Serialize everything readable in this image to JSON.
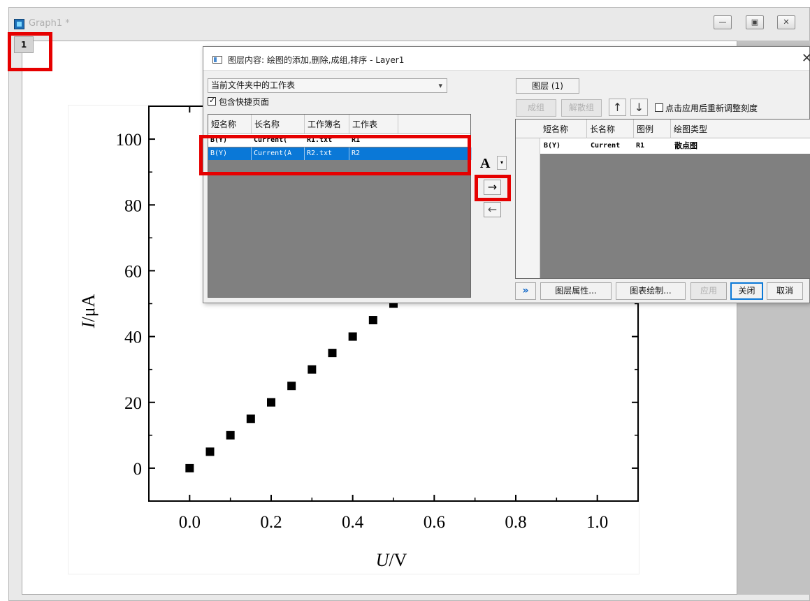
{
  "graph_window": {
    "title": "Graph1 *",
    "layer_tab": "1",
    "buttons": {
      "minimize": "—",
      "restore": "▣",
      "close": "✕"
    }
  },
  "chart_data": {
    "type": "scatter",
    "xlabel": "U/V",
    "xlabel_italic": "U",
    "xlabel_unit": "/V",
    "ylabel": "I/μA",
    "ylabel_italic": "I",
    "ylabel_unit": "/μA",
    "xlim": [
      -0.1,
      1.1
    ],
    "ylim": [
      -10,
      110
    ],
    "xticks": [
      0.0,
      0.2,
      0.4,
      0.6,
      0.8,
      1.0
    ],
    "xtick_labels": [
      "0.0",
      "0.2",
      "0.4",
      "0.6",
      "0.8",
      "1.0"
    ],
    "yticks": [
      0,
      20,
      40,
      60,
      80,
      100
    ],
    "ytick_labels": [
      "0",
      "20",
      "40",
      "60",
      "80",
      "100"
    ],
    "marker": "square",
    "marker_color": "#000000",
    "x": [
      0.0,
      0.05,
      0.1,
      0.15,
      0.2,
      0.25,
      0.3,
      0.35,
      0.4,
      0.45,
      0.5
    ],
    "y": [
      0,
      5,
      10,
      15,
      20,
      25,
      30,
      35,
      40,
      45,
      50
    ]
  },
  "dialog": {
    "title": "图层内容: 绘图的添加,删除,成组,排序 - Layer1",
    "close": "✕",
    "source_select": "当前文件夹中的工作表",
    "include_shortcuts": {
      "label": "包含快捷页面",
      "checked": true
    },
    "left_columns": [
      "短名称",
      "长名称",
      "工作簿名",
      "工作表"
    ],
    "left_rows": [
      {
        "short": "B(Y)",
        "long": "Current(",
        "book": "R1.txt",
        "sheet": "R1",
        "selected": false
      },
      {
        "short": "B(Y)",
        "long": "Current(A",
        "book": "R2.txt",
        "sheet": "R2",
        "selected": true
      }
    ],
    "font_button": "A",
    "dropdown_arrow": "▾",
    "add_button": "→",
    "remove_button": "←",
    "layer_button": "图层 (1)",
    "group_button": "成组",
    "ungroup_button": "解散组",
    "move_up": "↑",
    "move_down": "↓",
    "rescale_checkbox": {
      "label": "点击应用后重新调整刻度",
      "checked": false
    },
    "right_columns": [
      "短名称",
      "长名称",
      "图例",
      "绘图类型"
    ],
    "right_rows": [
      {
        "short": "B(Y)",
        "long": "Current",
        "legend": "R1",
        "plot_type": "散点图"
      }
    ],
    "expand_button": "»",
    "layer_props_button": "图层属性...",
    "plot_setup_button": "图表绘制...",
    "apply_button": "应用",
    "close_button": "关闭",
    "cancel_button": "取消"
  },
  "highlight_color": "#e60000",
  "selection_color": "#0a78d7"
}
